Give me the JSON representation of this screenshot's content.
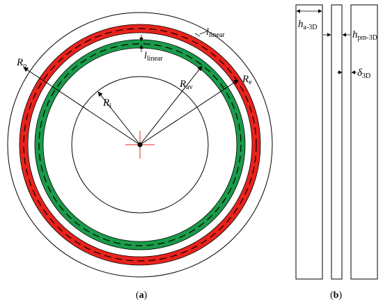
{
  "labels": {
    "Ro": {
      "base": "R",
      "sub": "o"
    },
    "Ri": {
      "base": "R",
      "sub": "i"
    },
    "Rav": {
      "base": "R",
      "sub": "av"
    },
    "Re": {
      "base": "R",
      "sub": "e"
    },
    "l_linear_top": {
      "base": "l",
      "sub": "linear"
    },
    "l_linear_mid": {
      "base": "l",
      "sub": "linear"
    },
    "ha3D": {
      "base": "h",
      "sub": "a-3D"
    },
    "hpm3D": {
      "base": "h",
      "sub": "pm-3D"
    },
    "delta3D": {
      "base": "δ",
      "sub": "3D"
    }
  },
  "captions": {
    "a": {
      "open": "(",
      "letter": "a",
      "close": ")"
    },
    "b": {
      "open": "(",
      "letter": "b",
      "close": ")"
    }
  },
  "colors": {
    "red_ring": "#e8231c",
    "green_ring": "#1a9a4a",
    "line": "#000000",
    "center_cross": "#e8231c"
  }
}
